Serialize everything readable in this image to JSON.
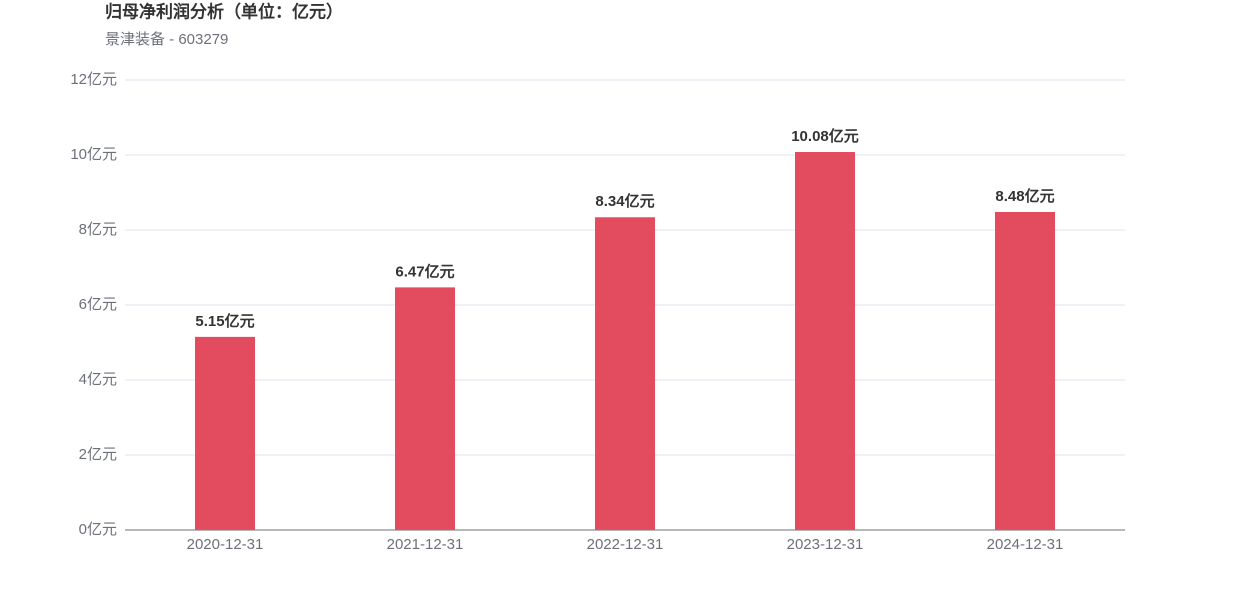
{
  "chart_data": {
    "type": "bar",
    "title": "归母净利润分析（单位：亿元）",
    "subtitle": "景津装备 - 603279",
    "categories": [
      "2020-12-31",
      "2021-12-31",
      "2022-12-31",
      "2023-12-31",
      "2024-12-31"
    ],
    "values": [
      5.15,
      6.47,
      8.34,
      10.08,
      8.48
    ],
    "value_labels": [
      "5.15亿元",
      "6.47亿元",
      "8.34亿元",
      "10.08亿元",
      "8.48亿元"
    ],
    "color": "#e34c5e",
    "ylim": [
      0,
      12
    ],
    "yticks": [
      {
        "value": 0,
        "label": "0亿元"
      },
      {
        "value": 2,
        "label": "2亿元"
      },
      {
        "value": 4,
        "label": "4亿元"
      },
      {
        "value": 6,
        "label": "6亿元"
      },
      {
        "value": 8,
        "label": "8亿元"
      },
      {
        "value": 10,
        "label": "10亿元"
      },
      {
        "value": 12,
        "label": "12亿元"
      }
    ],
    "grid": true
  }
}
